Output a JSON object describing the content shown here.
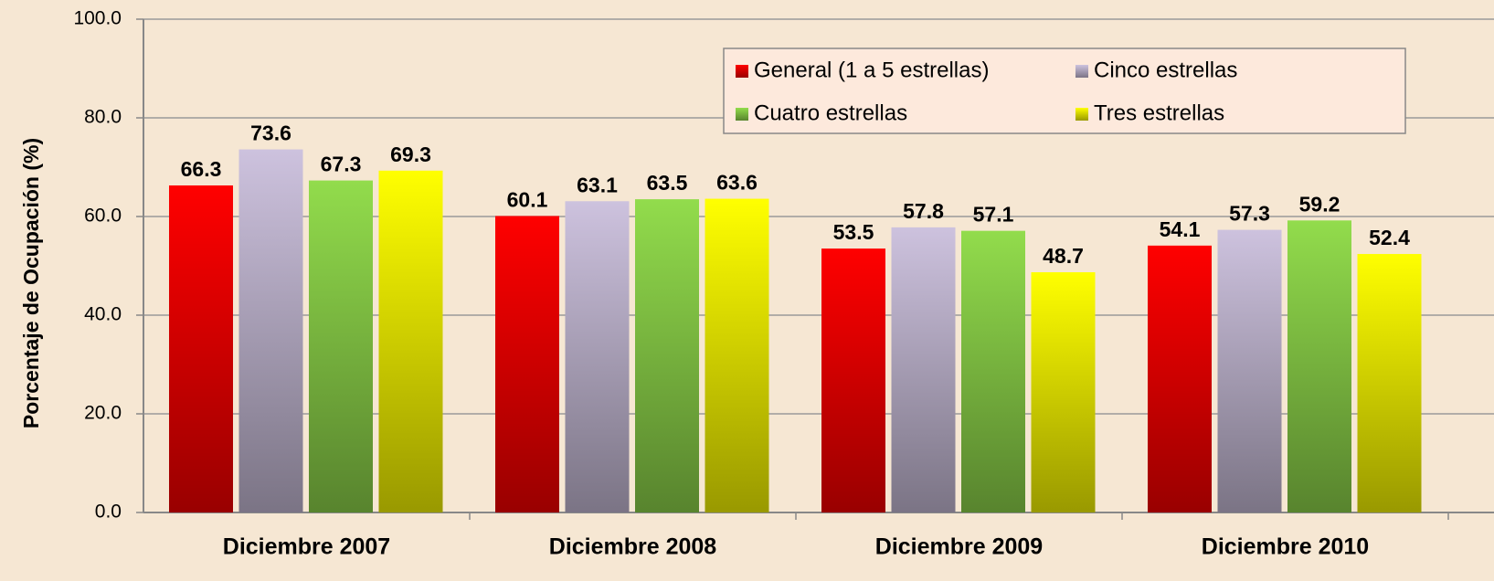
{
  "chart_data": {
    "type": "bar",
    "y_axis_label": "Porcentaje de Ocupación (%)",
    "categories": [
      "Diciembre 2007",
      "Diciembre 2008",
      "Diciembre 2009",
      "Diciembre 2010"
    ],
    "series": [
      {
        "name": "General (1 a 5 estrellas)",
        "color": "#ff0000",
        "values": [
          66.3,
          60.1,
          53.5,
          54.1
        ]
      },
      {
        "name": "Cinco estrellas",
        "color": "#cdc2de",
        "values": [
          73.6,
          63.1,
          57.8,
          57.3
        ]
      },
      {
        "name": "Cuatro estrellas",
        "color": "#92dc4c",
        "values": [
          67.3,
          63.5,
          57.1,
          59.2
        ]
      },
      {
        "name": "Tres estrellas",
        "color": "#ffff00",
        "values": [
          69.3,
          63.6,
          48.7,
          52.4
        ]
      }
    ],
    "ylim": [
      0,
      100
    ],
    "yticks": [
      {
        "value": 0,
        "label": "0.0"
      },
      {
        "value": 20,
        "label": "20.0"
      },
      {
        "value": 40,
        "label": "40.0"
      },
      {
        "value": 60,
        "label": "60.0"
      },
      {
        "value": 80,
        "label": "80.0"
      },
      {
        "value": 100,
        "label": "100.0"
      }
    ],
    "grid": true,
    "legend": "top-right"
  }
}
